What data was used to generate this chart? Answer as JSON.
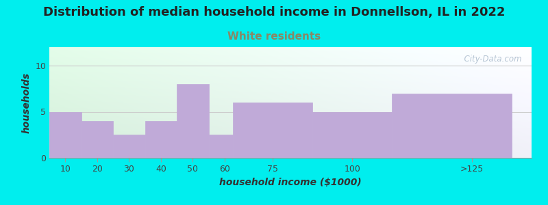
{
  "title": "Distribution of median household income in Donnellson, IL in 2022",
  "subtitle": "White residents",
  "xlabel": "household income ($1000)",
  "ylabel": "households",
  "background_color": "#00EEEE",
  "plot_bg_left": "#d4eeda",
  "plot_bg_right": "#f0f0f8",
  "bar_color": "#c0aad8",
  "bar_edge_color": "#c0aad8",
  "title_fontsize": 13,
  "subtitle_fontsize": 11,
  "subtitle_color": "#888866",
  "axis_label_fontsize": 10,
  "tick_label_fontsize": 9,
  "watermark": "  City-Data.com",
  "watermark_color": "#aabbcc",
  "ylim": [
    0,
    12
  ],
  "yticks": [
    0,
    5,
    10
  ],
  "bar_left_edges": [
    5,
    15,
    25,
    35,
    45,
    55,
    62.5,
    87.5,
    112.5
  ],
  "bar_widths": [
    10,
    10,
    10,
    10,
    10,
    7.5,
    25,
    25,
    37.5
  ],
  "bar_heights": [
    5,
    4,
    2.5,
    4,
    8,
    2.5,
    6,
    5,
    7
  ],
  "xtick_positions": [
    10,
    20,
    30,
    40,
    50,
    60,
    75,
    100,
    137.5
  ],
  "xtick_labels": [
    "10",
    "20",
    "30",
    "40",
    "50",
    "60",
    "75",
    "100",
    ">125"
  ],
  "xlim": [
    5,
    156.25
  ]
}
